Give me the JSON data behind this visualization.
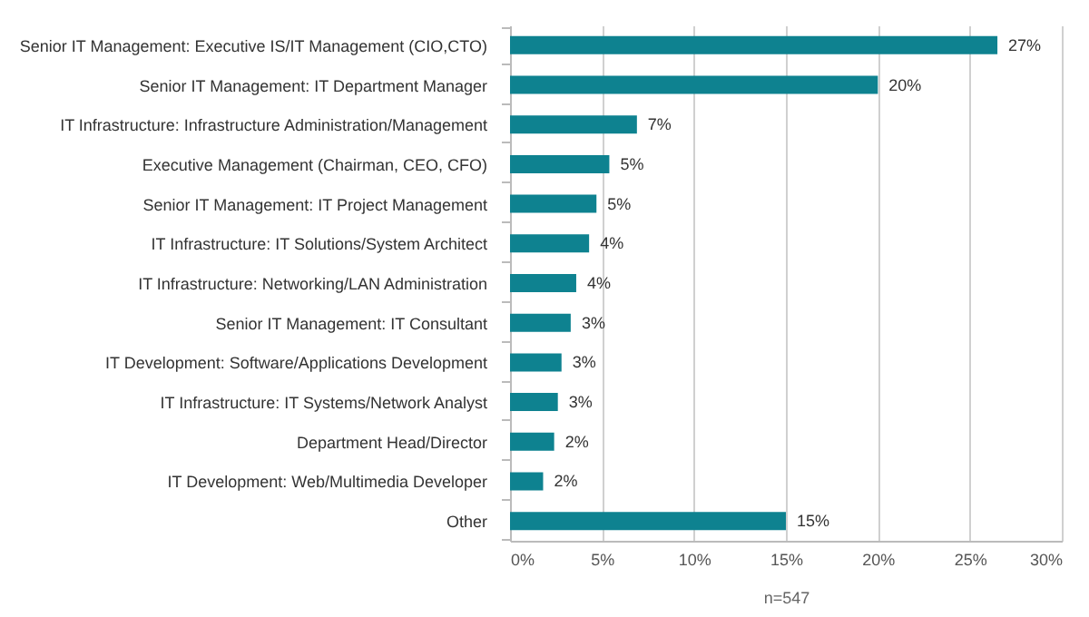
{
  "chart_data": {
    "type": "bar",
    "orientation": "horizontal",
    "xlabel": "n=547",
    "categories": [
      "Senior IT Management: Executive IS/IT Management (CIO,CTO)",
      "Senior IT Management: IT Department Manager",
      "IT Infrastructure: Infrastructure Administration/Management",
      "Executive Management (Chairman, CEO, CFO)",
      "Senior IT Management: IT Project Management",
      "IT Infrastructure: IT Solutions/System Architect",
      "IT Infrastructure: Networking/LAN Administration",
      "Senior IT Management: IT Consultant",
      "IT Development:  Software/Applications Development",
      "IT Infrastructure: IT Systems/Network Analyst",
      "Department Head/Director",
      "IT Development:  Web/Multimedia Developer",
      "Other"
    ],
    "values": [
      26.5,
      20.0,
      6.9,
      5.4,
      4.7,
      4.3,
      3.6,
      3.3,
      2.8,
      2.6,
      2.4,
      1.8,
      15.0
    ],
    "value_labels": [
      "27%",
      "20%",
      "7%",
      "5%",
      "5%",
      "4%",
      "4%",
      "3%",
      "3%",
      "3%",
      "2%",
      "2%",
      "15%"
    ],
    "color": "#0e8290",
    "xlim": [
      0,
      30
    ],
    "xticks": [
      {
        "value": 0,
        "label": "0%"
      },
      {
        "value": 5,
        "label": "5%"
      },
      {
        "value": 10,
        "label": "10%"
      },
      {
        "value": 15,
        "label": "15%"
      },
      {
        "value": 20,
        "label": "20%"
      },
      {
        "value": 25,
        "label": "25%"
      },
      {
        "value": 30,
        "label": "30%"
      }
    ],
    "grid": "x"
  }
}
